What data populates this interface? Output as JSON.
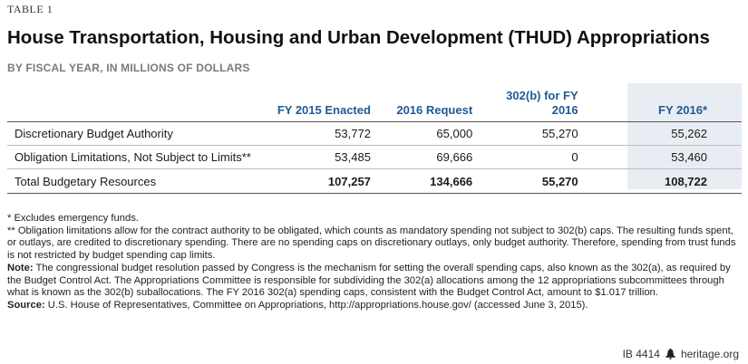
{
  "table_label": "TABLE 1",
  "title": "House Transportation, Housing and Urban Development (THUD) Appropriations",
  "subtitle": "BY FISCAL YEAR, IN MILLIONS OF DOLLARS",
  "columns": [
    "",
    "FY 2015 Enacted",
    "2016 Request",
    "302(b) for FY 2016",
    "FY 2016*"
  ],
  "rows": [
    {
      "label": "Discretionary Budget Authority",
      "values": [
        "53,772",
        "65,000",
        "55,270",
        "55,262"
      ]
    },
    {
      "label": "Obligation Limitations, Not Subject to Limits**",
      "values": [
        "53,485",
        "69,666",
        "0",
        "53,460"
      ]
    }
  ],
  "total": {
    "label": "Total Budgetary Resources",
    "values": [
      "107,257",
      "134,666",
      "55,270",
      "108,722"
    ]
  },
  "notes": {
    "footnote1": "* Excludes emergency funds.",
    "footnote2": "** Obligation limitations allow for the contract authority to be obligated, which counts as mandatory spending not subject to 302(b) caps. The resulting funds spent, or outlays, are credited to discretionary spending. There are no spending caps on discretionary outlays, only budget authority. Therefore, spending from trust funds is not restricted by budget spending cap limits.",
    "note_label": "Note:",
    "note_text": " The congressional budget resolution passed by Congress is the mechanism for setting the overall spending caps, also known as the 302(a), as required by the Budget Control Act. The Appropriations Committee is responsible for subdividing the 302(a) allocations among the 12 appropriations subcommittees through what is known as the 302(b) suballocations. The FY 2016 302(a) spending caps, consistent with the Budget Control Act, amount to $1.017 trillion.",
    "source_label": "Source:",
    "source_text": " U.S. House of Representatives, Committee on Appropriations, http://appropriations.house.gov/ (accessed June 3, 2015)."
  },
  "footer": {
    "id": "IB 4414",
    "site": "heritage.org"
  }
}
